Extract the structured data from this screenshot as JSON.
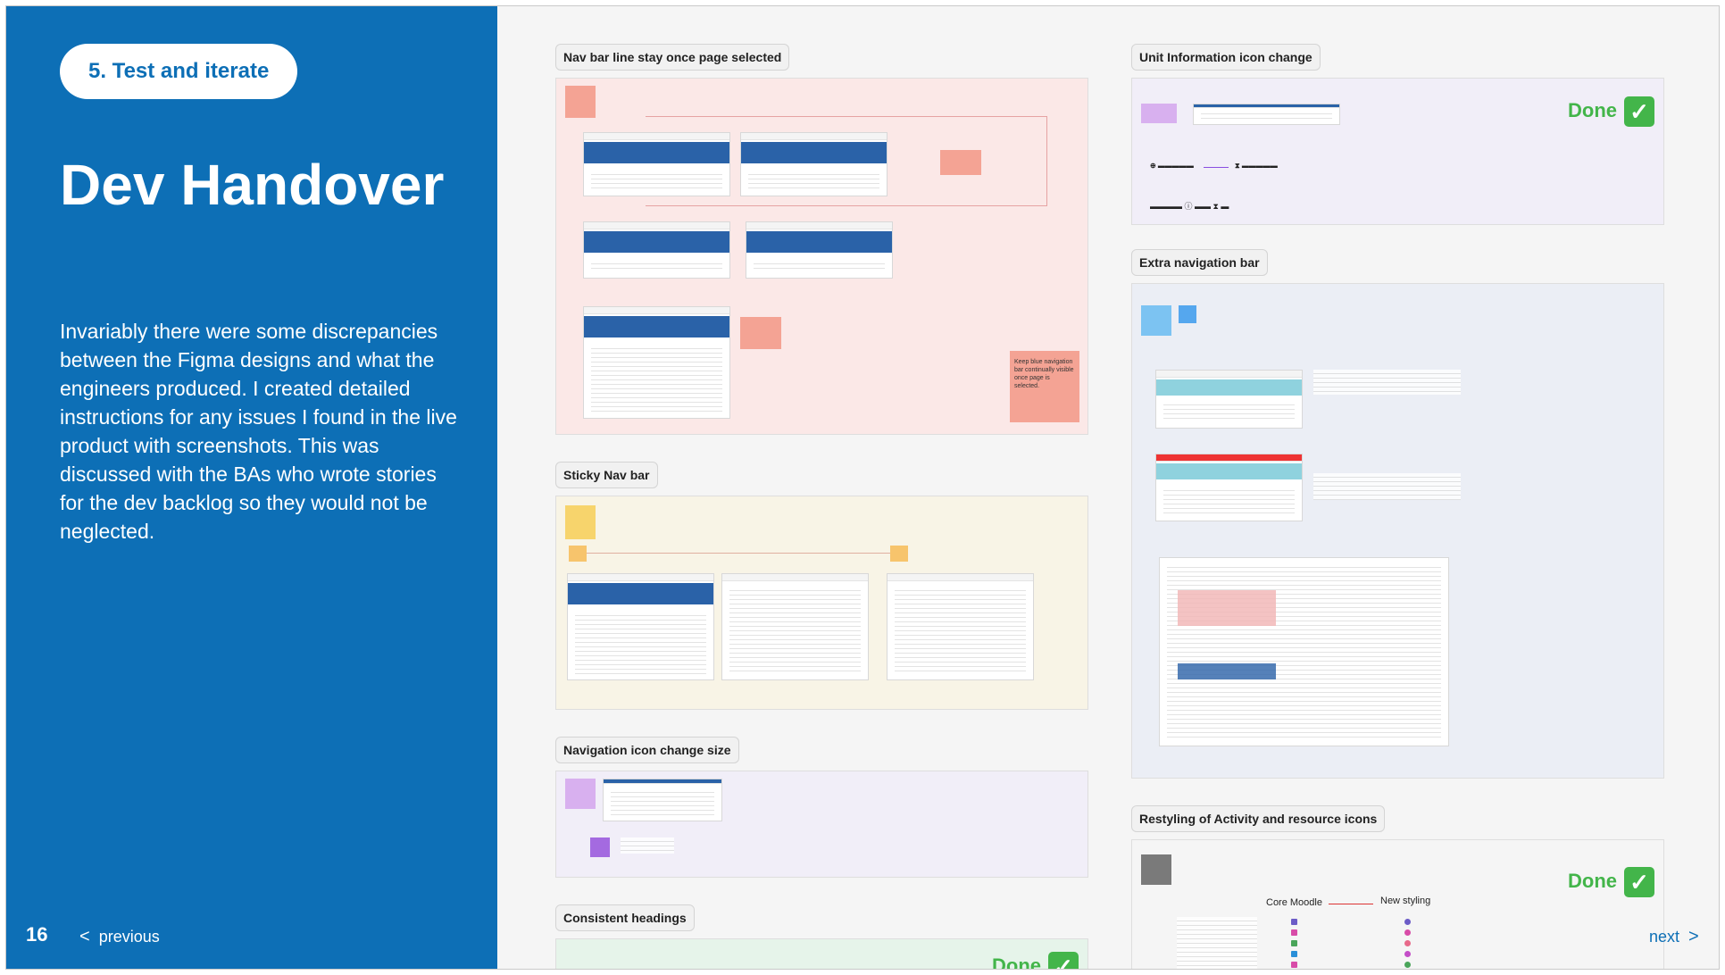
{
  "slide": {
    "step_label": "5. Test and iterate",
    "title": "Dev Handover",
    "description": "Invariably there were some discrepancies between the Figma designs and what the engineers produced. I created detailed instructions for any issues I found in the live product with screenshots. This was discussed with the BAs who wrote stories for the dev backlog so they would not be neglected.",
    "page_number": "16",
    "previous_label": "previous",
    "next_label": "next",
    "chevron_left": "<",
    "chevron_right": ">"
  },
  "boards": {
    "nav_bar_line": {
      "label": "Nav bar line stay once page selected",
      "note_text": "Keep blue navigation bar continually visible once page is selected."
    },
    "sticky_nav": {
      "label": "Sticky Nav bar"
    },
    "nav_icon_size": {
      "label": "Navigation icon change size"
    },
    "consistent_headings": {
      "label": "Consistent headings",
      "status": "Done"
    },
    "unit_info_icon": {
      "label": "Unit Information icon change",
      "status": "Done"
    },
    "extra_nav": {
      "label": "Extra navigation bar"
    },
    "restyling_icons": {
      "label": "Restyling of Activity and resource icons",
      "status": "Done",
      "from_label": "Core Moodle",
      "to_label": "New styling"
    }
  },
  "colors": {
    "panel_blue": "#0d6fb6",
    "done_green": "#43b54a",
    "nav_board_bg": "#fbe8e7",
    "sticky_board_bg": "#f8f4e6",
    "icon_board_bg": "#f1eef8",
    "extra_board_bg": "#ebeef5",
    "headings_board_bg": "#e6f4ea"
  },
  "icons": {
    "check": "check-icon"
  }
}
